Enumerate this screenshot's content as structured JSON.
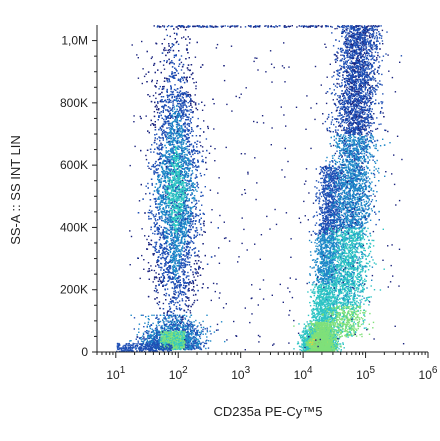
{
  "chart_data": {
    "type": "scatter",
    "plot_style": "flow-cytometry density dot plot",
    "xlabel": "CD235a PE-Cy™5",
    "ylabel": "SS-A :: SS INT LIN",
    "x_scale": "log",
    "xlim": [
      5,
      1000000
    ],
    "ylim": [
      0,
      1050000
    ],
    "x_ticks": [
      {
        "value": 10,
        "base": "10",
        "exp": "1"
      },
      {
        "value": 100,
        "base": "10",
        "exp": "2"
      },
      {
        "value": 1000,
        "base": "10",
        "exp": "3"
      },
      {
        "value": 10000,
        "base": "10",
        "exp": "4"
      },
      {
        "value": 100000,
        "base": "10",
        "exp": "5"
      },
      {
        "value": 1000000,
        "base": "10",
        "exp": "6"
      }
    ],
    "y_ticks": [
      {
        "value": 0,
        "label": "0"
      },
      {
        "value": 200000,
        "label": "200K"
      },
      {
        "value": 400000,
        "label": "400K"
      },
      {
        "value": 600000,
        "label": "600K"
      },
      {
        "value": 800000,
        "label": "800K"
      },
      {
        "value": 1000000,
        "label": "1,0M"
      }
    ],
    "density_colors": [
      "#1a237e",
      "#1e4fb5",
      "#1e88c8",
      "#2ec4c4",
      "#7fe07a",
      "#f5d635",
      "#f07a1e",
      "#d81e1e"
    ],
    "populations": [
      {
        "id": "cd235a-negative-low",
        "x_log_center": 1.9,
        "x_log_sd": 0.22,
        "y_range": [
          0,
          120000
        ]
      },
      {
        "id": "cd235a-negative-tall",
        "x_log_center": 1.95,
        "x_log_sd": 0.18,
        "y_range": [
          100000,
          1050000
        ],
        "y_peak": 520000
      },
      {
        "id": "cd235a-positive-dense",
        "x_log_center": 4.25,
        "x_log_sd": 0.12,
        "y_range": [
          0,
          80000
        ],
        "y_peak": 30000
      },
      {
        "id": "cd235a-positive-streak-left",
        "x_log_center": 4.35,
        "x_log_sd": 0.1,
        "y_range": [
          0,
          600000
        ]
      },
      {
        "id": "cd235a-positive-tall",
        "x_log_center": 4.9,
        "x_log_sd": 0.16,
        "y_range": [
          50000,
          1050000
        ],
        "y_peak": 600000
      }
    ]
  }
}
